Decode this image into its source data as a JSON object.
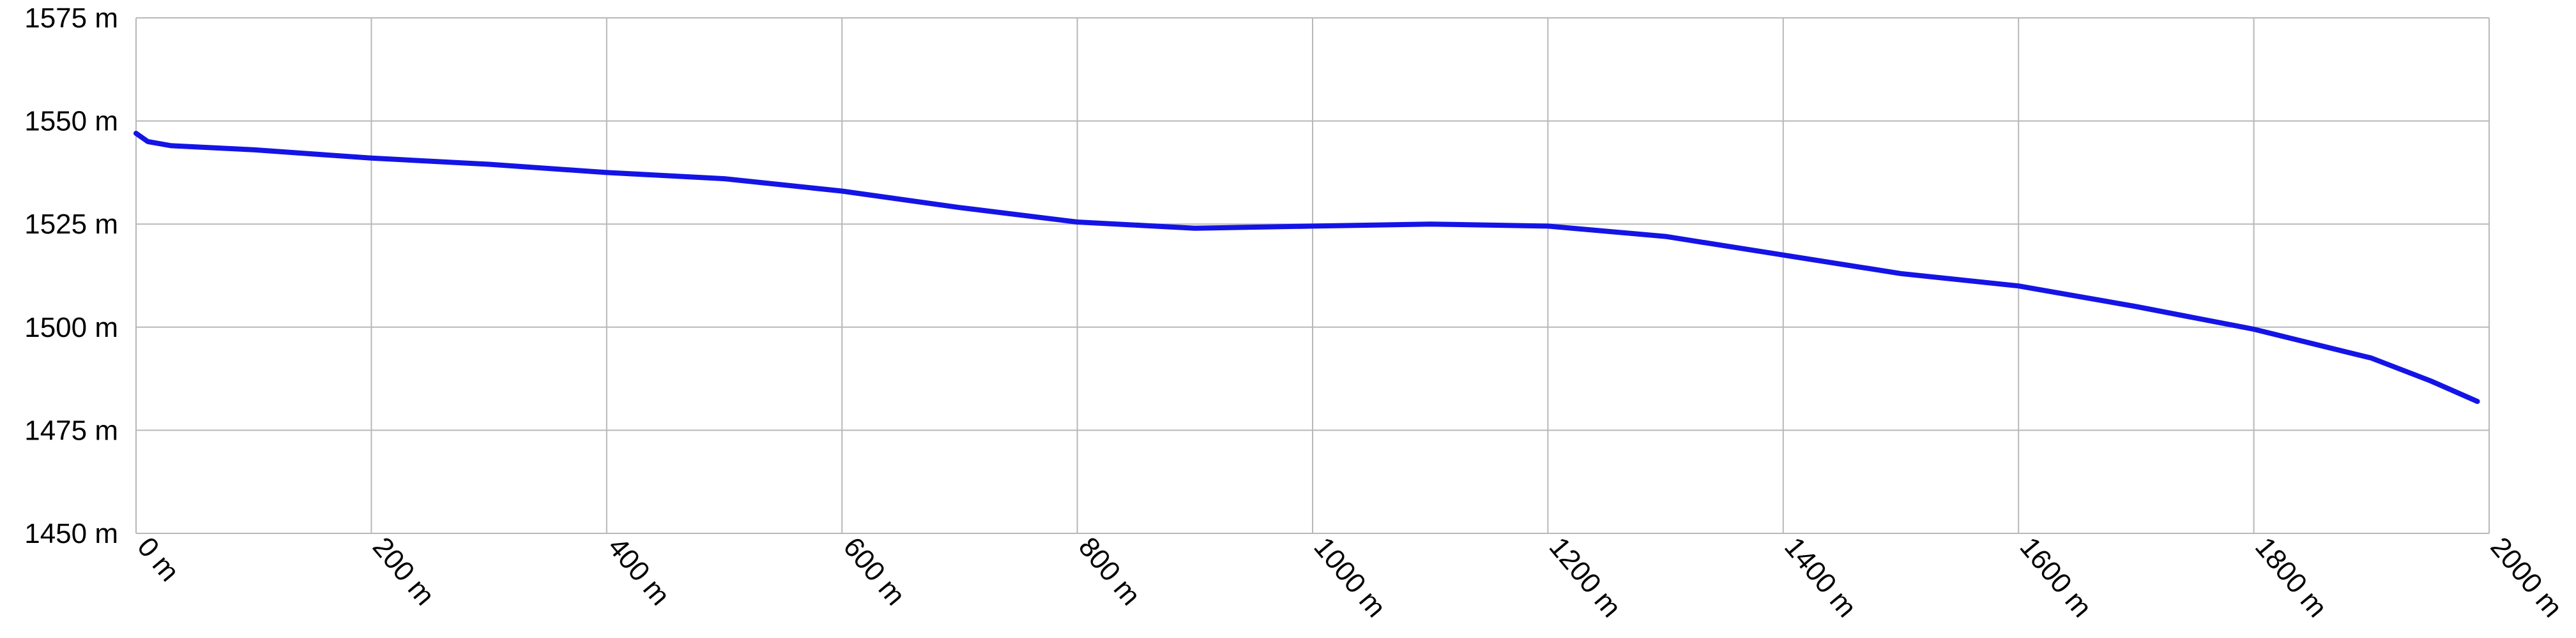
{
  "chart_data": {
    "type": "line",
    "x": [
      0,
      10,
      30,
      100,
      200,
      300,
      400,
      500,
      600,
      700,
      800,
      900,
      1000,
      1100,
      1200,
      1300,
      1400,
      1500,
      1600,
      1700,
      1800,
      1900,
      1950,
      1990
    ],
    "series": [
      {
        "color": "#1414e6",
        "values": [
          1547,
          1545,
          1544,
          1543,
          1541,
          1539.5,
          1537.5,
          1536,
          1533,
          1529,
          1525.5,
          1524,
          1524.5,
          1525,
          1524.5,
          1522,
          1517.5,
          1513,
          1510,
          1505,
          1499.5,
          1492.5,
          1487,
          1482
        ]
      }
    ],
    "xlim": [
      0,
      2000
    ],
    "xticks": [
      {
        "value": 0,
        "label": "0 m"
      },
      {
        "value": 200,
        "label": "200 m"
      },
      {
        "value": 400,
        "label": "400 m"
      },
      {
        "value": 600,
        "label": "600 m"
      },
      {
        "value": 800,
        "label": "800 m"
      },
      {
        "value": 1000,
        "label": "1000 m"
      },
      {
        "value": 1200,
        "label": "1200 m"
      },
      {
        "value": 1400,
        "label": "1400 m"
      },
      {
        "value": 1600,
        "label": "1600 m"
      },
      {
        "value": 1800,
        "label": "1800 m"
      },
      {
        "value": 2000,
        "label": "2000 m"
      }
    ],
    "ylim": [
      1450,
      1575
    ],
    "yticks": [
      {
        "value": 1450,
        "label": "1450 m"
      },
      {
        "value": 1475,
        "label": "1475 m"
      },
      {
        "value": 1500,
        "label": "1500 m"
      },
      {
        "value": 1525,
        "label": "1525 m"
      },
      {
        "value": 1550,
        "label": "1550 m"
      },
      {
        "value": 1575,
        "label": "1575 m"
      }
    ],
    "grid": true
  }
}
